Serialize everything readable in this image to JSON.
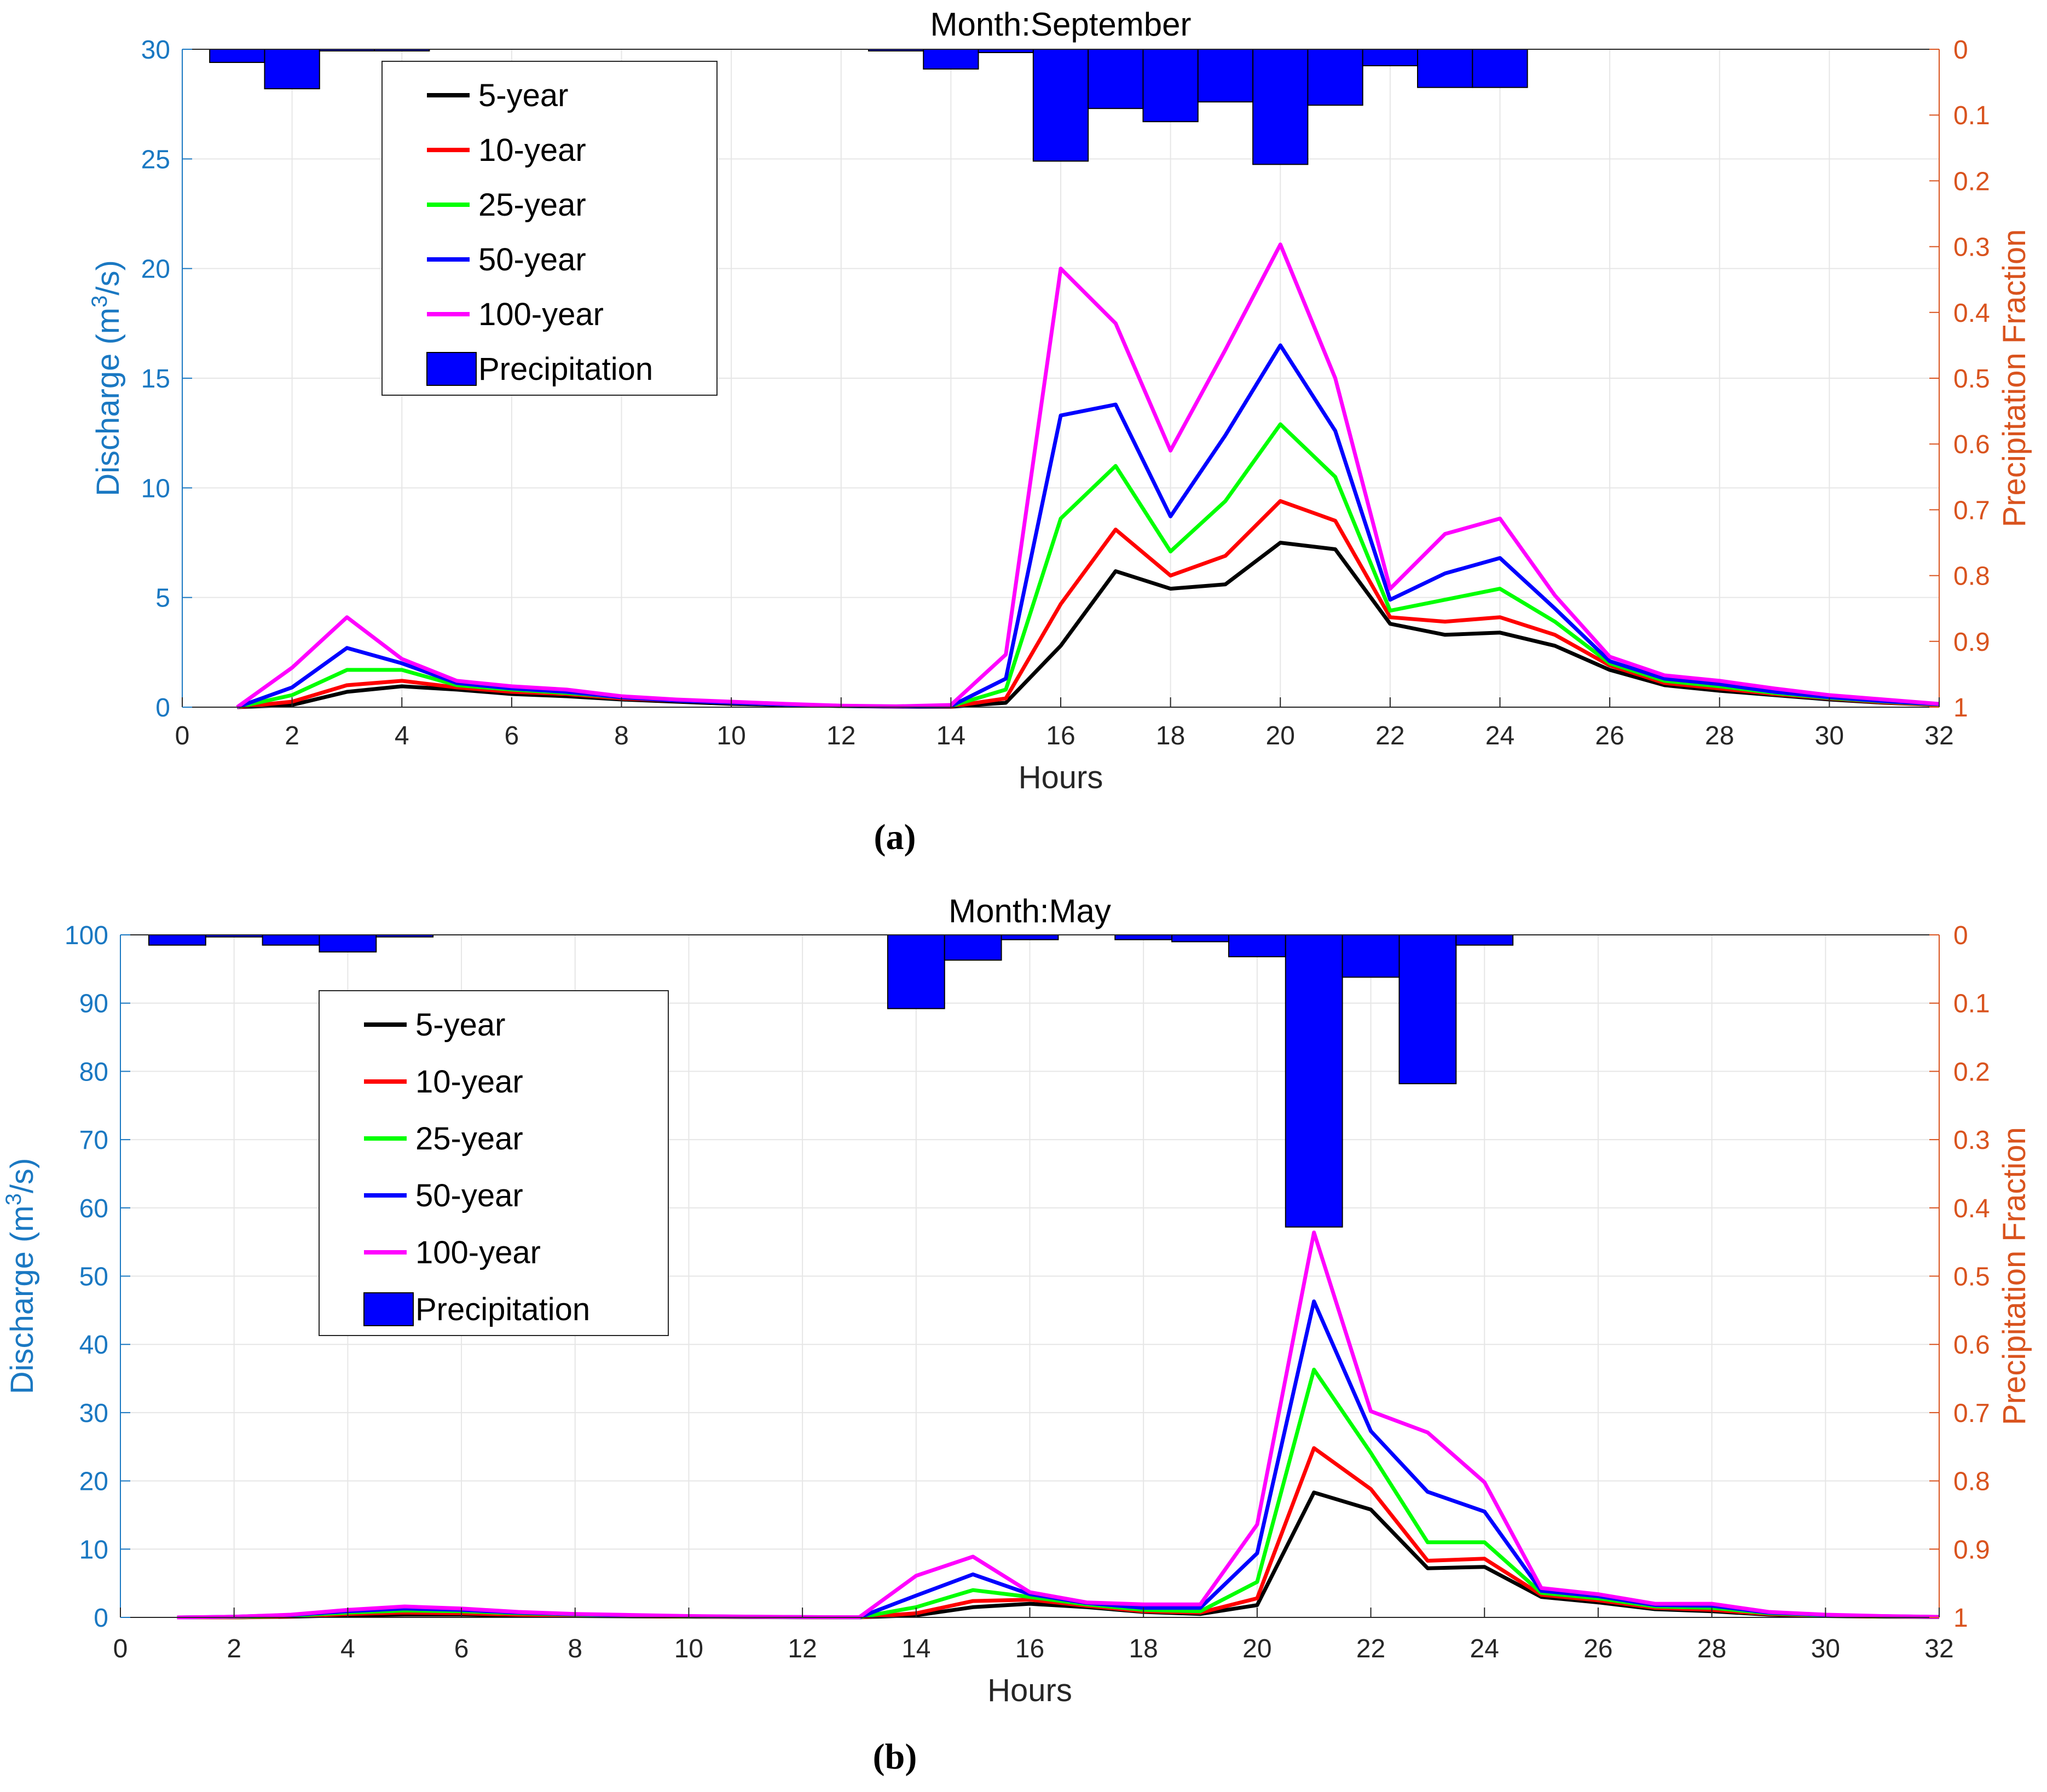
{
  "panel_labels": [
    "(a)",
    "(b)"
  ],
  "chart_data": [
    {
      "type": "line",
      "title": "Month:September",
      "xlabel": "Hours",
      "ylabel_left": "Discharge (m3/s)",
      "ylabel_right": "Precipitation Fraction",
      "xlim": [
        0,
        32
      ],
      "ylim_left": [
        0,
        30
      ],
      "ylim_right": [
        1,
        0
      ],
      "xticks": [
        0,
        2,
        4,
        6,
        8,
        10,
        12,
        14,
        16,
        18,
        20,
        22,
        24,
        26,
        28,
        30,
        32
      ],
      "yticks_left": [
        0,
        5,
        10,
        15,
        20,
        25,
        30
      ],
      "yticks_right": [
        "0",
        "0.1",
        "0.2",
        "0.3",
        "0.4",
        "0.5",
        "0.6",
        "0.7",
        "0.8",
        "0.9",
        "1"
      ],
      "grid": true,
      "legend_position": "top-left",
      "x": [
        1,
        2,
        3,
        4,
        5,
        6,
        7,
        8,
        9,
        10,
        11,
        12,
        13,
        14,
        15,
        16,
        17,
        18,
        19,
        20,
        21,
        22,
        23,
        24,
        25,
        26,
        27,
        28,
        29,
        30,
        31,
        32
      ],
      "series": [
        {
          "name": "5-year",
          "color": "#000000",
          "values": [
            0,
            0.1,
            0.7,
            0.95,
            0.8,
            0.6,
            0.5,
            0.35,
            0.25,
            0.15,
            0.1,
            0.05,
            0.02,
            0.02,
            0.2,
            2.8,
            6.2,
            5.4,
            5.6,
            7.5,
            7.2,
            3.8,
            3.3,
            3.4,
            2.8,
            1.7,
            1.0,
            0.75,
            0.55,
            0.35,
            0.2,
            0.1
          ]
        },
        {
          "name": "10-year",
          "color": "#ff0000",
          "values": [
            0,
            0.25,
            1.0,
            1.2,
            0.9,
            0.7,
            0.6,
            0.4,
            0.3,
            0.2,
            0.12,
            0.06,
            0.03,
            0.03,
            0.4,
            4.7,
            8.1,
            6.0,
            6.9,
            9.4,
            8.5,
            4.1,
            3.9,
            4.1,
            3.3,
            1.9,
            1.1,
            0.85,
            0.6,
            0.4,
            0.22,
            0.1
          ]
        },
        {
          "name": "25-year",
          "color": "#00ff00",
          "values": [
            0,
            0.55,
            1.7,
            1.7,
            1.0,
            0.8,
            0.65,
            0.45,
            0.3,
            0.2,
            0.12,
            0.06,
            0.03,
            0.05,
            0.8,
            8.6,
            11.0,
            7.1,
            9.4,
            12.9,
            10.5,
            4.4,
            4.9,
            5.4,
            3.9,
            2.0,
            1.2,
            0.95,
            0.65,
            0.42,
            0.25,
            0.12
          ]
        },
        {
          "name": "50-year",
          "color": "#0000ff",
          "values": [
            0,
            0.9,
            2.7,
            2.0,
            1.1,
            0.85,
            0.7,
            0.45,
            0.3,
            0.2,
            0.12,
            0.06,
            0.03,
            0.05,
            1.3,
            13.3,
            13.8,
            8.7,
            12.4,
            16.5,
            12.6,
            4.9,
            6.1,
            6.8,
            4.5,
            2.1,
            1.3,
            1.05,
            0.7,
            0.45,
            0.27,
            0.13
          ]
        },
        {
          "name": "100-year",
          "color": "#ff00ff",
          "values": [
            0,
            1.8,
            4.1,
            2.2,
            1.2,
            0.95,
            0.8,
            0.5,
            0.35,
            0.25,
            0.15,
            0.07,
            0.04,
            0.1,
            2.4,
            20.0,
            17.5,
            11.7,
            16.3,
            21.1,
            15.0,
            5.4,
            7.9,
            8.6,
            5.1,
            2.3,
            1.45,
            1.2,
            0.85,
            0.55,
            0.35,
            0.15
          ]
        }
      ],
      "precipitation": {
        "name": "Precipitation",
        "color": "#0000ff",
        "hours": [
          1,
          2,
          3,
          4,
          13,
          14,
          15,
          16,
          17,
          18,
          19,
          20,
          21,
          22,
          23,
          24
        ],
        "values": [
          0.02,
          0.06,
          0.002,
          0.002,
          0.002,
          0.03,
          0.005,
          0.17,
          0.09,
          0.11,
          0.08,
          0.175,
          0.085,
          0.025,
          0.058,
          0.058
        ]
      }
    },
    {
      "type": "line",
      "title": "Month:May",
      "xlabel": "Hours",
      "ylabel_left": "Discharge (m3/s)",
      "ylabel_right": "Precipitation Fraction",
      "xlim": [
        0,
        32
      ],
      "ylim_left": [
        0,
        100
      ],
      "ylim_right": [
        1,
        0
      ],
      "xticks": [
        0,
        2,
        4,
        6,
        8,
        10,
        12,
        14,
        16,
        18,
        20,
        22,
        24,
        26,
        28,
        30,
        32
      ],
      "yticks_left": [
        0,
        10,
        20,
        30,
        40,
        50,
        60,
        70,
        80,
        90,
        100
      ],
      "yticks_right": [
        "0",
        "0.1",
        "0.2",
        "0.3",
        "0.4",
        "0.5",
        "0.6",
        "0.7",
        "0.8",
        "0.9",
        "1"
      ],
      "grid": true,
      "legend_position": "top-left",
      "x": [
        1,
        2,
        3,
        4,
        5,
        6,
        7,
        8,
        9,
        10,
        11,
        12,
        13,
        14,
        15,
        16,
        17,
        18,
        19,
        20,
        21,
        22,
        23,
        24,
        25,
        26,
        27,
        28,
        29,
        30,
        31,
        32
      ],
      "series": [
        {
          "name": "5-year",
          "color": "#000000",
          "values": [
            0,
            0,
            0.1,
            0.3,
            0.4,
            0.4,
            0.3,
            0.2,
            0.15,
            0.1,
            0.05,
            0.02,
            0.01,
            0.3,
            1.5,
            2.0,
            1.5,
            0.8,
            0.5,
            1.8,
            18.3,
            15.8,
            7.2,
            7.4,
            3.0,
            2.2,
            1.2,
            0.9,
            0.4,
            0.2,
            0.1,
            0.05
          ]
        },
        {
          "name": "10-year",
          "color": "#ff0000",
          "values": [
            0,
            0,
            0.15,
            0.5,
            0.7,
            0.6,
            0.4,
            0.3,
            0.2,
            0.12,
            0.06,
            0.03,
            0.01,
            0.6,
            2.4,
            2.6,
            1.7,
            0.9,
            0.7,
            2.8,
            24.8,
            18.8,
            8.3,
            8.6,
            3.3,
            2.5,
            1.4,
            1.1,
            0.5,
            0.25,
            0.12,
            0.05
          ]
        },
        {
          "name": "25-year",
          "color": "#00ff00",
          "values": [
            0,
            0.05,
            0.25,
            0.7,
            1.0,
            0.9,
            0.6,
            0.4,
            0.25,
            0.15,
            0.08,
            0.04,
            0.02,
            1.5,
            4.0,
            3.0,
            1.9,
            1.1,
            0.9,
            5.2,
            36.3,
            24.1,
            11.0,
            11.0,
            3.6,
            2.8,
            1.6,
            1.4,
            0.6,
            0.3,
            0.15,
            0.06
          ]
        },
        {
          "name": "50-year",
          "color": "#0000ff",
          "values": [
            0,
            0.1,
            0.35,
            0.9,
            1.3,
            1.1,
            0.7,
            0.45,
            0.3,
            0.18,
            0.1,
            0.05,
            0.02,
            3.2,
            6.3,
            3.4,
            2.1,
            1.4,
            1.4,
            9.4,
            46.3,
            27.3,
            18.4,
            15.5,
            3.9,
            3.1,
            1.8,
            1.7,
            0.7,
            0.35,
            0.18,
            0.07
          ]
        },
        {
          "name": "100-year",
          "color": "#ff00ff",
          "values": [
            0,
            0.1,
            0.4,
            1.1,
            1.6,
            1.3,
            0.8,
            0.5,
            0.35,
            0.2,
            0.12,
            0.06,
            0.03,
            6.1,
            8.9,
            3.7,
            2.2,
            1.9,
            1.9,
            13.6,
            56.4,
            30.2,
            27.1,
            19.8,
            4.3,
            3.4,
            2.0,
            2.0,
            0.8,
            0.4,
            0.2,
            0.08
          ]
        }
      ],
      "precipitation": {
        "name": "Precipitation",
        "color": "#0000ff",
        "hours": [
          1,
          2,
          3,
          4,
          5,
          14,
          15,
          16,
          18,
          19,
          20,
          21,
          22,
          23,
          24
        ],
        "values": [
          0.015,
          0.003,
          0.015,
          0.025,
          0.003,
          0.108,
          0.037,
          0.007,
          0.007,
          0.01,
          0.032,
          0.428,
          0.062,
          0.218,
          0.015
        ]
      }
    }
  ]
}
